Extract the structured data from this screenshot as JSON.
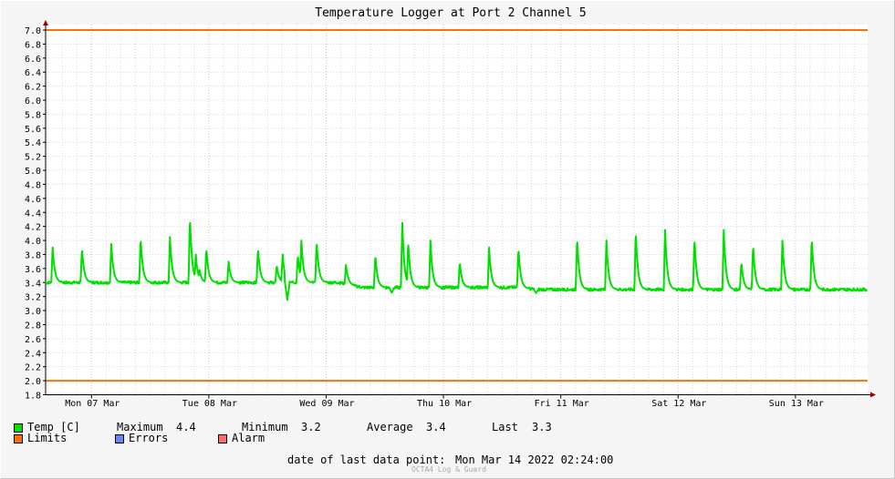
{
  "chart_data": {
    "type": "line",
    "title": "Temperature Logger at Port 2 Channel 5",
    "ylim": [
      1.8,
      7.0
    ],
    "y_ticks": [
      "1.8",
      "2.0",
      "2.2",
      "2.4",
      "2.6",
      "2.8",
      "3.0",
      "3.2",
      "3.4",
      "3.6",
      "3.8",
      "4.0",
      "4.2",
      "4.4",
      "4.6",
      "4.8",
      "5.0",
      "5.2",
      "5.4",
      "5.6",
      "5.8",
      "6.0",
      "6.2",
      "6.4",
      "6.6",
      "6.8",
      "7.0"
    ],
    "x_ticks": [
      "Mon 07 Mar",
      "Tue 08 Mar",
      "Wed 09 Mar",
      "Thu 10 Mar",
      "Fri 11 Mar",
      "Sat 12 Mar",
      "Sun 13 Mar"
    ],
    "x_range_days": [
      0,
      7.0
    ],
    "limits": [
      {
        "name": "upper",
        "value": 7.0
      },
      {
        "name": "lower",
        "value": 2.0
      }
    ],
    "grid": true,
    "series": [
      {
        "name": "Temp [C]",
        "color": "#00e000",
        "baseline": [
          [
            0.0,
            3.4
          ],
          [
            2.5,
            3.4
          ],
          [
            2.7,
            3.33
          ],
          [
            4.0,
            3.33
          ],
          [
            4.2,
            3.3
          ],
          [
            7.0,
            3.3
          ]
        ],
        "spikes": [
          [
            0.06,
            3.9
          ],
          [
            0.31,
            3.9
          ],
          [
            0.56,
            3.95
          ],
          [
            0.81,
            4.05
          ],
          [
            1.06,
            4.05
          ],
          [
            1.23,
            4.35
          ],
          [
            1.28,
            3.8
          ],
          [
            1.31,
            3.6
          ],
          [
            1.37,
            3.9
          ],
          [
            1.56,
            3.7
          ],
          [
            1.81,
            3.9
          ],
          [
            1.97,
            3.65
          ],
          [
            2.02,
            3.8
          ],
          [
            2.15,
            3.8
          ],
          [
            2.18,
            4.0
          ],
          [
            2.31,
            4.0
          ],
          [
            2.56,
            3.65
          ],
          [
            2.81,
            3.8
          ],
          [
            3.04,
            4.25
          ],
          [
            3.09,
            4.0
          ],
          [
            3.28,
            4.0
          ],
          [
            3.53,
            3.7
          ],
          [
            3.78,
            3.9
          ],
          [
            4.03,
            3.9
          ],
          [
            4.53,
            4.05
          ],
          [
            4.78,
            4.0
          ],
          [
            5.03,
            4.15
          ],
          [
            5.28,
            4.15
          ],
          [
            5.53,
            4.05
          ],
          [
            5.78,
            4.15
          ],
          [
            5.93,
            3.7
          ],
          [
            6.03,
            3.95
          ],
          [
            6.28,
            4.0
          ],
          [
            6.53,
            4.05
          ]
        ],
        "dips": [
          [
            2.06,
            3.15
          ],
          [
            2.95,
            3.25
          ],
          [
            4.18,
            3.25
          ]
        ]
      }
    ]
  },
  "legend": {
    "temp_label": "Temp [C]",
    "limits_label": "Limits",
    "errors_label": "Errors",
    "alarm_label": "Alarm",
    "temp_color": "#00e000",
    "limits_color": "#ff7000",
    "errors_color": "#6e7fff",
    "alarm_color": "#ff6e6e"
  },
  "stats": {
    "maximum_label": "Maximum",
    "maximum_value": "4.4",
    "minimum_label": "Minimum",
    "minimum_value": "3.2",
    "average_label": "Average",
    "average_value": "3.4",
    "last_label": "Last",
    "last_value": "3.3"
  },
  "footer": {
    "last_data_label": "date of last data point:",
    "last_data_value": "Mon Mar 14 2022 02:24:00",
    "watermark": "OCTA4 Log & Guard"
  },
  "colors": {
    "background": "#f5f5f5",
    "plot_background": "#ffffff",
    "grid_major": "#e8b4b4",
    "grid_minor": "#d8d8d8",
    "axis": "#000000",
    "arrow": "#a00000"
  }
}
